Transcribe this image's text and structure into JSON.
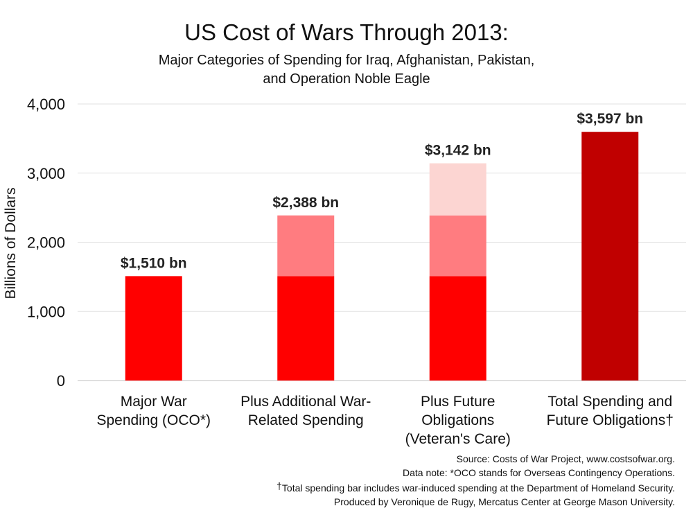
{
  "header": {
    "title": "US Cost of Wars Through 2013:",
    "subtitle_line1": "Major Categories of Spending for Iraq, Afghanistan, Pakistan,",
    "subtitle_line2": "and Operation Noble Eagle"
  },
  "chart_data": {
    "type": "bar",
    "stacked": true,
    "ylabel": "Billions of Dollars",
    "ylim": [
      0,
      4000
    ],
    "yticks": [
      0,
      1000,
      2000,
      3000,
      4000
    ],
    "ytick_labels": [
      "0",
      "1,000",
      "2,000",
      "3,000",
      "4,000"
    ],
    "grid": true,
    "legend": "none",
    "categories": [
      [
        "Major War",
        "Spending (OCO*)"
      ],
      [
        "Plus Additional War-",
        "Related Spending"
      ],
      [
        "Plus Future",
        "Obligations",
        "(Veteran's Care)"
      ],
      [
        "Total Spending and",
        "Future Obligations†"
      ]
    ],
    "bars": [
      {
        "segments": [
          {
            "value": 1510,
            "color": "#ff0000"
          }
        ],
        "total_label": "$1,510 bn"
      },
      {
        "segments": [
          {
            "value": 1510,
            "color": "#ff0000"
          },
          {
            "value": 878,
            "color": "#ff7c80"
          }
        ],
        "total_label": "$2,388 bn"
      },
      {
        "segments": [
          {
            "value": 1510,
            "color": "#ff0000"
          },
          {
            "value": 878,
            "color": "#ff7c80"
          },
          {
            "value": 754,
            "color": "#fcd5d2"
          }
        ],
        "total_label": "$3,142 bn"
      },
      {
        "segments": [
          {
            "value": 3597,
            "color": "#c00000"
          }
        ],
        "total_label": "$3,597 bn"
      }
    ]
  },
  "notes": {
    "source": "Source: Costs of War Project, www.costsofwar.org.",
    "data_note": "Data note: *OCO stands for Overseas Contingency Operations.",
    "dagger": "†",
    "total_note": "Total spending bar includes war-induced spending at the Department of Homeland Security.",
    "produced_by": "Produced by Veronique de Rugy, Mercatus Center at George Mason University."
  }
}
